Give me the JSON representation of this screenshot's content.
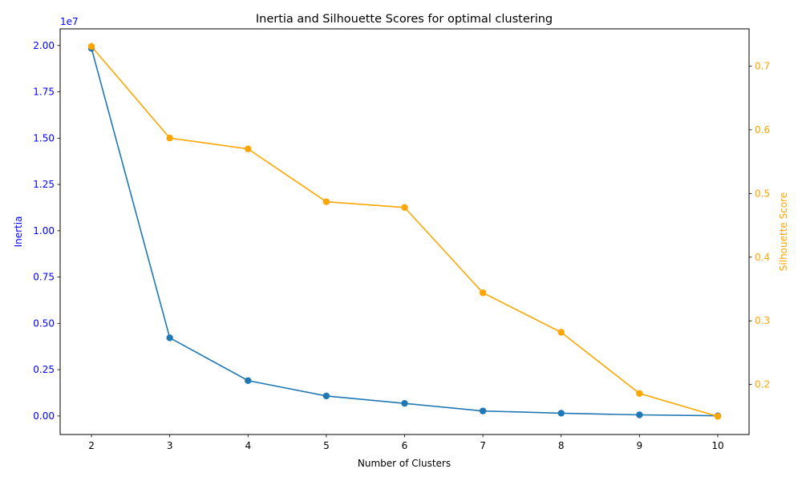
{
  "chart_data": {
    "type": "line",
    "title": "Inertia and Silhouette Scores for optimal clustering",
    "xlabel": "Number of Clusters",
    "x": [
      2,
      3,
      4,
      5,
      6,
      7,
      8,
      9,
      10
    ],
    "x_ticks": [
      2,
      3,
      4,
      5,
      6,
      7,
      8,
      9,
      10
    ],
    "xlim": [
      1.6,
      10.4
    ],
    "grid": false,
    "left_axis": {
      "label": "Inertia",
      "color": "#0000ff",
      "offset_text": "1e7",
      "scale": 10000000,
      "ylim": [
        -0.1,
        2.09
      ],
      "ticks": [
        0.0,
        0.25,
        0.5,
        0.75,
        1.0,
        1.25,
        1.5,
        1.75,
        2.0
      ],
      "tick_labels": [
        "0.00",
        "0.25",
        "0.50",
        "0.75",
        "1.00",
        "1.25",
        "1.50",
        "1.75",
        "2.00"
      ]
    },
    "right_axis": {
      "label": "Silhouette Score",
      "color": "#ffa500",
      "ylim": [
        0.1215,
        0.7585
      ],
      "ticks": [
        0.2,
        0.3,
        0.4,
        0.5,
        0.6,
        0.7
      ],
      "tick_labels": [
        "0.2",
        "0.3",
        "0.4",
        "0.5",
        "0.6",
        "0.7"
      ]
    },
    "series": [
      {
        "axis": "left",
        "color": "#1f77b4",
        "values": [
          19850000,
          4220000,
          1910000,
          1080000,
          680000,
          270000,
          150000,
          60000,
          10000
        ]
      },
      {
        "axis": "right",
        "color": "#ffa500",
        "values": [
          0.731,
          0.587,
          0.57,
          0.487,
          0.478,
          0.344,
          0.282,
          0.186,
          0.15
        ]
      }
    ]
  }
}
